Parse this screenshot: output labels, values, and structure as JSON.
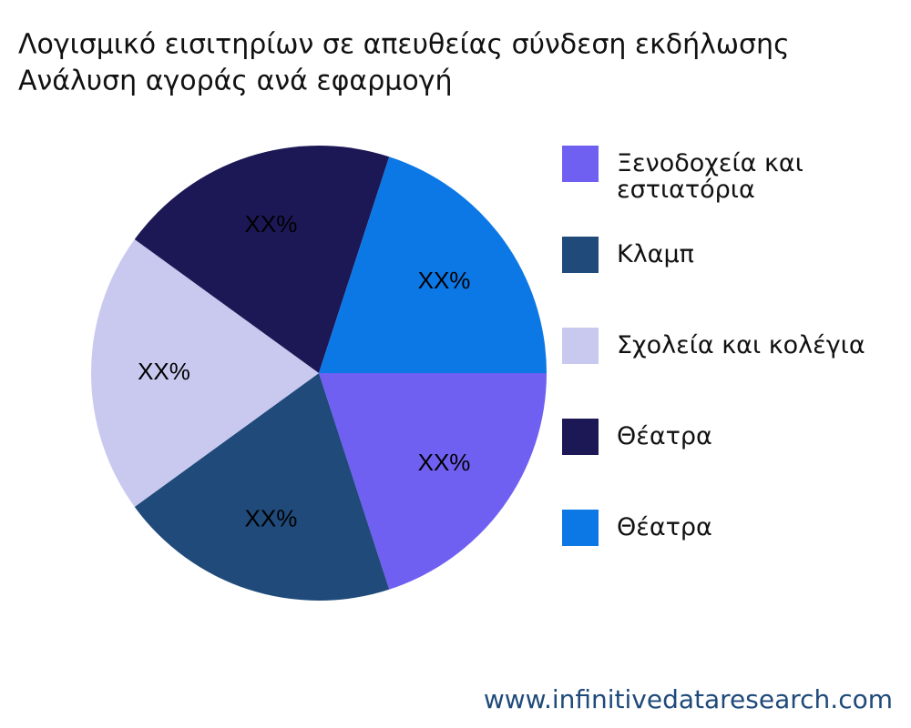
{
  "chart_data": {
    "type": "pie",
    "title": "Λογισμικό εισιτηρίων σε απευθείας σύνδεση εκδήλωσης",
    "subtitle": "Ανάλυση αγοράς ανά εφαρμογή",
    "categories": [
      "Ξενοδοχεία και εστιατόρια",
      "Κλαμπ",
      "Σχολεία και κολέγια",
      "Θέατρα",
      "Θέατρα"
    ],
    "values": [
      20,
      20,
      20,
      20,
      20
    ],
    "value_labels": [
      "XX%",
      "XX%",
      "XX%",
      "XX%",
      "XX%"
    ],
    "colors": [
      "#7060f2",
      "#1f4a7a",
      "#c9c9f0",
      "#1c1856",
      "#0c78e6"
    ],
    "legend": "right",
    "watermark": "www.infinitivedataresearch.com"
  }
}
